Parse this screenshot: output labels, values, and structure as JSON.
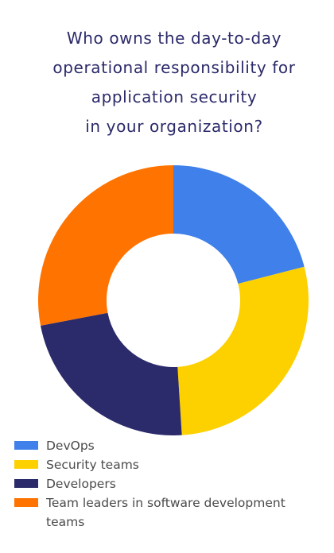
{
  "chart_data": {
    "type": "donut",
    "title": [
      "Who owns the day-to-day",
      "operational responsibility for",
      "application security",
      "in your organization?"
    ],
    "categories": [
      "DevOps",
      "Security teams",
      "Developers",
      "Team leaders in software development teams"
    ],
    "values": [
      21,
      28,
      23,
      28
    ],
    "colors": [
      "#3f80ea",
      "#fdd000",
      "#2b2a6a",
      "#ff7300"
    ],
    "legend": "bottom"
  }
}
